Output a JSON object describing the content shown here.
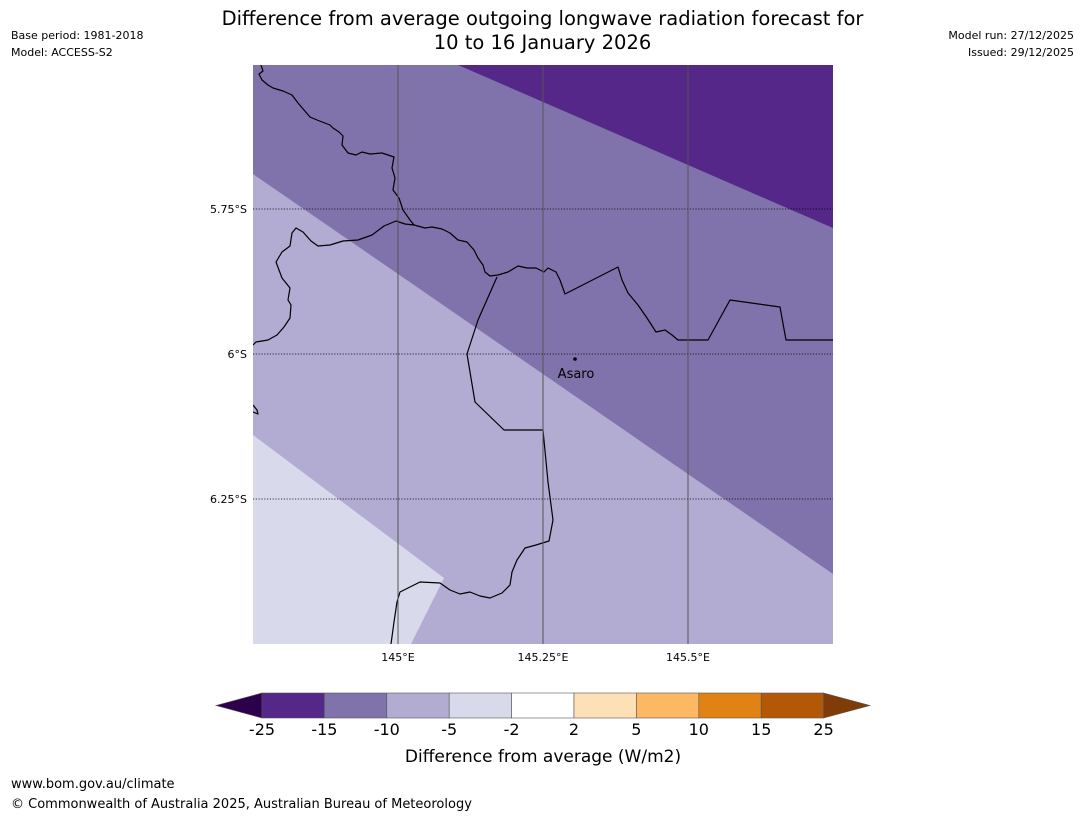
{
  "title": {
    "line1": "Difference from average outgoing longwave radiation forecast for",
    "line2": "10 to 16 January 2026"
  },
  "meta_left": {
    "base_period": "Base period: 1981-2018",
    "model": "Model: ACCESS-S2"
  },
  "meta_right": {
    "model_run": "Model run: 27/12/2025",
    "issued": "Issued: 29/12/2025"
  },
  "map": {
    "lat_labels": [
      "5.75°S",
      "6°S",
      "6.25°S"
    ],
    "lon_labels": [
      "145°E",
      "145.25°E",
      "145.5°E"
    ],
    "place_label": "Asaro",
    "band_colors": {
      "m15_m25": "#542788",
      "m10_m15": "#8073ac",
      "m5_m10": "#b2abd2",
      "m2_m5": "#d8daeb"
    }
  },
  "colorbar": {
    "title": "Difference from average (W/m2)",
    "tick_labels": [
      "-25",
      "-15",
      "-10",
      "-5",
      "-2",
      "2",
      "5",
      "10",
      "15",
      "25"
    ],
    "colors": [
      "#542788",
      "#8073ac",
      "#b2abd2",
      "#d8daeb",
      "#ffffff",
      "#fee0b6",
      "#fdb863",
      "#e08214",
      "#b35806"
    ],
    "extend_low_color": "#2d004b",
    "extend_high_color": "#7f3b08"
  },
  "footer": {
    "url": "www.bom.gov.au/climate",
    "copyright": "© Commonwealth of Australia 2025, Australian Bureau of Meteorology"
  }
}
